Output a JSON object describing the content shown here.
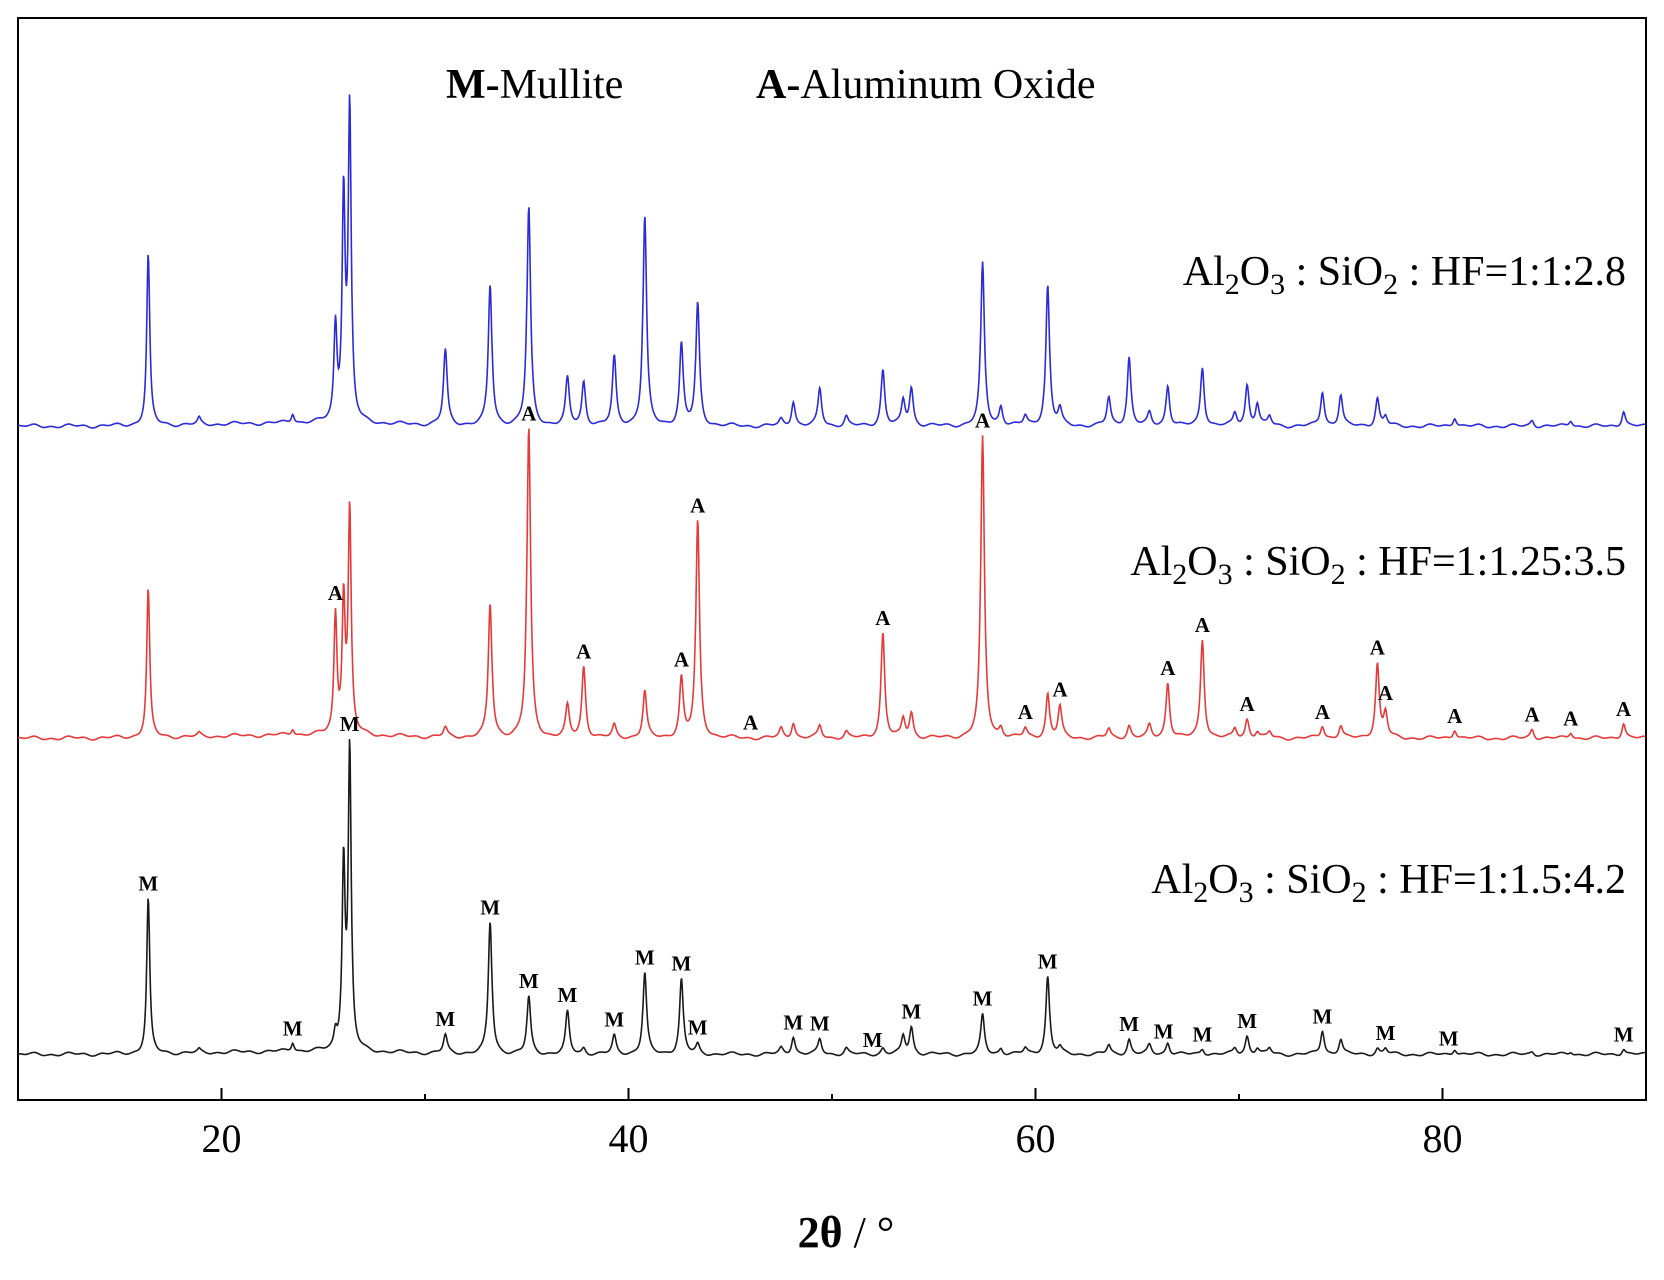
{
  "chart_data": {
    "type": "line",
    "xlabel_bold": "2θ",
    "xlabel_rest": " / °",
    "ylabel": "",
    "xlim": [
      10,
      90
    ],
    "xticks": [
      20,
      40,
      60,
      80
    ],
    "yticks_shown": false,
    "grid": false,
    "legend": {
      "placement": "top-center",
      "entries": [
        {
          "symbol": "M",
          "separator": "-",
          "name": "Mullite"
        },
        {
          "symbol": "A",
          "separator": "-",
          "name": "Aluminum Oxide"
        }
      ]
    },
    "peak_positions": [
      16.4,
      18.9,
      23.5,
      25.6,
      26.0,
      26.3,
      31.0,
      33.2,
      35.1,
      37.0,
      37.8,
      39.3,
      40.8,
      42.6,
      43.4,
      47.5,
      48.1,
      49.4,
      50.7,
      52.5,
      53.5,
      53.9,
      57.4,
      58.3,
      59.5,
      60.6,
      61.2,
      63.6,
      64.6,
      65.6,
      66.5,
      68.2,
      69.8,
      70.4,
      70.9,
      71.5,
      74.1,
      75.0,
      76.8,
      77.2,
      80.6,
      84.4,
      86.3,
      88.9
    ],
    "series": [
      {
        "name": "Al2O3 : SiO2 : HF=1:1:2.8",
        "label_parts": [
          "Al",
          "2",
          "O",
          "3",
          " : SiO",
          "2",
          " : HF=1:1:2.8"
        ],
        "color": "#2b2bd8",
        "intensity": [
          0.55,
          0.02,
          0.03,
          0.3,
          0.72,
          1.0,
          0.24,
          0.45,
          0.7,
          0.15,
          0.14,
          0.22,
          0.67,
          0.26,
          0.39,
          0.02,
          0.08,
          0.12,
          0.03,
          0.18,
          0.08,
          0.12,
          0.52,
          0.06,
          0.03,
          0.45,
          0.05,
          0.09,
          0.22,
          0.04,
          0.13,
          0.19,
          0.04,
          0.13,
          0.07,
          0.03,
          0.11,
          0.1,
          0.09,
          0.03,
          0.03,
          0.02,
          0.02,
          0.05
        ],
        "peak_markers": []
      },
      {
        "name": "Al2O3 : SiO2 : HF=1:1.25:3.5",
        "label_parts": [
          "Al",
          "2",
          "O",
          "3",
          " : SiO",
          "2",
          " : HF=1:1.25:3.5"
        ],
        "color": "#e53a3a",
        "intensity": [
          0.48,
          0.01,
          0.02,
          0.38,
          0.43,
          0.72,
          0.03,
          0.43,
          1.0,
          0.1,
          0.23,
          0.04,
          0.15,
          0.19,
          0.7,
          0.03,
          0.05,
          0.04,
          0.02,
          0.34,
          0.06,
          0.08,
          0.97,
          0.03,
          0.03,
          0.14,
          0.1,
          0.03,
          0.04,
          0.04,
          0.18,
          0.32,
          0.03,
          0.06,
          0.02,
          0.02,
          0.04,
          0.04,
          0.24,
          0.08,
          0.03,
          0.03,
          0.02,
          0.05
        ],
        "peak_markers": [
          {
            "label": "A",
            "x": 25.6
          },
          {
            "label": "A",
            "x": 35.1
          },
          {
            "label": "A",
            "x": 37.8
          },
          {
            "label": "A",
            "x": 42.6
          },
          {
            "label": "A",
            "x": 43.4
          },
          {
            "label": "A",
            "x": 46.0
          },
          {
            "label": "A",
            "x": 52.5
          },
          {
            "label": "A",
            "x": 57.4
          },
          {
            "label": "A",
            "x": 59.5
          },
          {
            "label": "A",
            "x": 61.2
          },
          {
            "label": "A",
            "x": 66.5
          },
          {
            "label": "A",
            "x": 68.2
          },
          {
            "label": "A",
            "x": 70.4
          },
          {
            "label": "A",
            "x": 74.1
          },
          {
            "label": "A",
            "x": 76.8
          },
          {
            "label": "A",
            "x": 77.2
          },
          {
            "label": "A",
            "x": 80.6
          },
          {
            "label": "A",
            "x": 84.4
          },
          {
            "label": "A",
            "x": 86.3
          },
          {
            "label": "A",
            "x": 88.9
          }
        ]
      },
      {
        "name": "Al2O3 : SiO2 : HF=1:1.5:4.2",
        "label_parts": [
          "Al",
          "2",
          "O",
          "3",
          " : SiO",
          "2",
          " : HF=1:1.5:4.2"
        ],
        "color": "#1a1a1a",
        "intensity": [
          0.52,
          0.01,
          0.03,
          0.05,
          0.62,
          1.0,
          0.06,
          0.44,
          0.19,
          0.14,
          0.02,
          0.06,
          0.27,
          0.25,
          0.03,
          0.02,
          0.06,
          0.05,
          0.02,
          0.02,
          0.06,
          0.09,
          0.13,
          0.02,
          0.02,
          0.26,
          0.02,
          0.03,
          0.05,
          0.03,
          0.04,
          0.02,
          0.02,
          0.06,
          0.02,
          0.02,
          0.08,
          0.05,
          0.02,
          0.02,
          0.02,
          0.01,
          0.01,
          0.02
        ],
        "peak_markers": [
          {
            "label": "M",
            "x": 16.4
          },
          {
            "label": "M",
            "x": 23.5
          },
          {
            "label": "M",
            "x": 26.3
          },
          {
            "label": "M",
            "x": 31.0
          },
          {
            "label": "M",
            "x": 33.2
          },
          {
            "label": "M",
            "x": 35.1
          },
          {
            "label": "M",
            "x": 37.0
          },
          {
            "label": "M",
            "x": 39.3
          },
          {
            "label": "M",
            "x": 40.8
          },
          {
            "label": "M",
            "x": 42.6
          },
          {
            "label": "M",
            "x": 43.4
          },
          {
            "label": "M",
            "x": 48.1
          },
          {
            "label": "M",
            "x": 49.4
          },
          {
            "label": "M",
            "x": 52.0
          },
          {
            "label": "M",
            "x": 53.9
          },
          {
            "label": "M",
            "x": 57.4
          },
          {
            "label": "M",
            "x": 60.6
          },
          {
            "label": "M",
            "x": 64.6
          },
          {
            "label": "M",
            "x": 66.3
          },
          {
            "label": "M",
            "x": 68.2
          },
          {
            "label": "M",
            "x": 70.4
          },
          {
            "label": "M",
            "x": 74.1
          },
          {
            "label": "M",
            "x": 77.2
          },
          {
            "label": "M",
            "x": 80.3
          },
          {
            "label": "M",
            "x": 88.9
          }
        ]
      }
    ]
  }
}
